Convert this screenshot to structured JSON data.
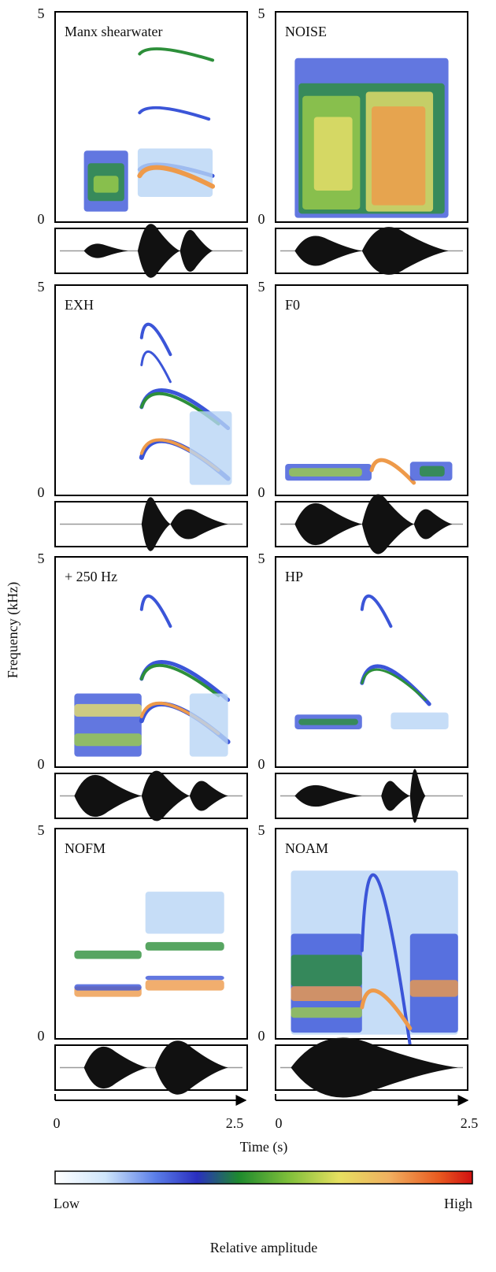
{
  "panels": [
    {
      "label": "Manx shearwater",
      "ymax": "5",
      "ymin": "0"
    },
    {
      "label": "NOISE",
      "ymax": "5",
      "ymin": "0"
    },
    {
      "label": "EXH",
      "ymax": "5",
      "ymin": "0"
    },
    {
      "label": "F0",
      "ymax": "5",
      "ymin": "0"
    },
    {
      "label": "+ 250 Hz",
      "ymax": "5",
      "ymin": "0"
    },
    {
      "label": "HP",
      "ymax": "5",
      "ymin": "0"
    },
    {
      "label": "NOFM",
      "ymax": "5",
      "ymin": "0"
    },
    {
      "label": "NOAM",
      "ymax": "5",
      "ymin": "0"
    }
  ],
  "frequency_axis_label": "Frequency (kHz)",
  "time_axis": {
    "left": {
      "start": "0",
      "end": "2.5"
    },
    "right": {
      "start": "0",
      "end": "2.5"
    },
    "label": "Time (s)"
  },
  "colorbar": {
    "low": "Low",
    "high": "High",
    "label": "Relative amplitude"
  }
}
